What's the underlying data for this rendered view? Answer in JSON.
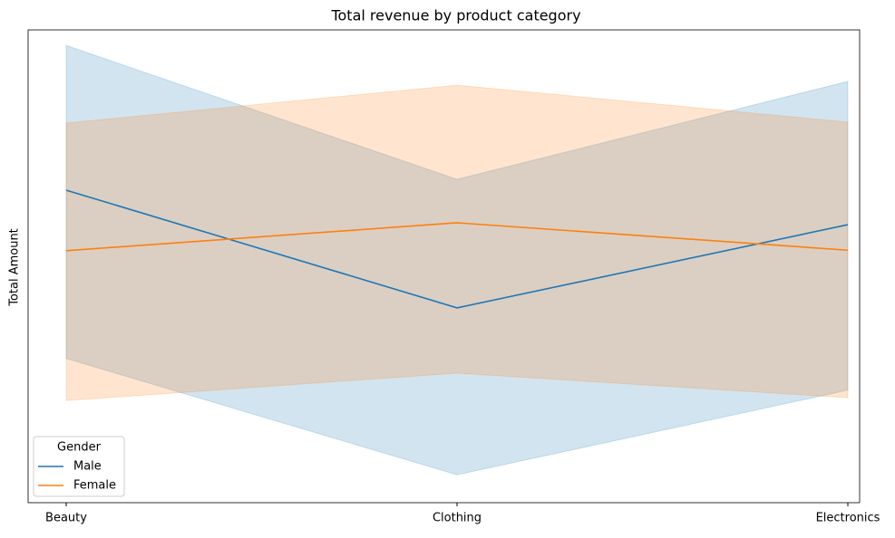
{
  "chart_data": {
    "type": "line",
    "title": "Total revenue by product category",
    "ylabel": "Total Amount",
    "categories": [
      "Beauty",
      "Clothing",
      "Electronics"
    ],
    "ylim": [
      0,
      100
    ],
    "legend": {
      "title": "Gender",
      "loc": "lower left"
    },
    "series": [
      {
        "name": "Male",
        "color": "#1f77b4",
        "values": [
          66.1,
          41.2,
          58.8
        ],
        "lower": [
          30.5,
          5.9,
          23.8
        ],
        "upper": [
          96.7,
          68.4,
          89.1
        ]
      },
      {
        "name": "Female",
        "color": "#ff7f0e",
        "values": [
          53.3,
          59.2,
          53.4
        ],
        "lower": [
          21.6,
          27.4,
          22.2
        ],
        "upper": [
          80.3,
          88.3,
          80.5
        ]
      }
    ]
  }
}
